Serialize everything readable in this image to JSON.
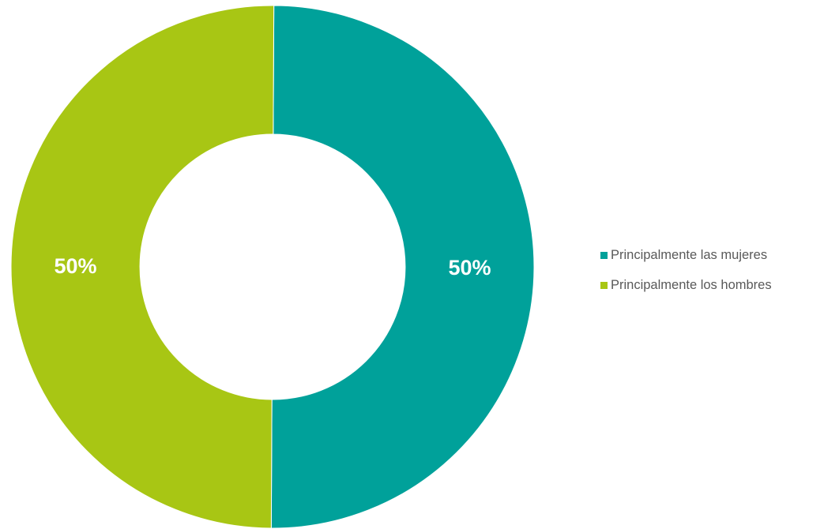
{
  "chart_data": {
    "type": "pie",
    "variant": "donut",
    "series": [
      {
        "name": "Principalmente las mujeres",
        "value": 50,
        "label": "50%",
        "color": "#00A19A"
      },
      {
        "name": "Principalmente los hombres",
        "value": 50,
        "label": "50%",
        "color": "#A8C614"
      }
    ],
    "legend_position": "right"
  }
}
